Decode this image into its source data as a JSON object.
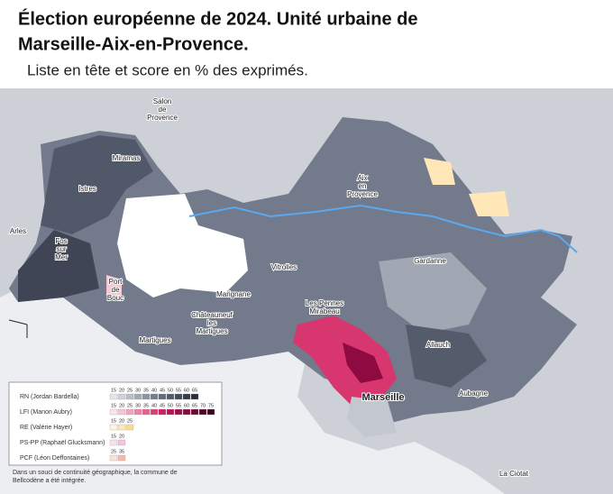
{
  "header": {
    "title_lines": [
      "Élection européenne de 2024.  Unité urbaine de",
      "Marseille-Aix-en-Provence."
    ],
    "subtitle": "Liste en tête et score en % des exprimés."
  },
  "places": [
    {
      "lines": [
        "Salon",
        "de",
        "Provence"
      ]
    },
    {
      "lines": [
        "Miramas"
      ]
    },
    {
      "lines": [
        "Istres"
      ]
    },
    {
      "lines": [
        "Arles"
      ]
    },
    {
      "lines": [
        "Fos",
        "sur",
        "Mer"
      ]
    },
    {
      "lines": [
        "Port",
        "de",
        "Bouc"
      ]
    },
    {
      "lines": [
        "Martigues"
      ]
    },
    {
      "lines": [
        "Châteauneuf",
        "les",
        "Martigues"
      ]
    },
    {
      "lines": [
        "Marignane"
      ]
    },
    {
      "lines": [
        "Vitrolles"
      ]
    },
    {
      "lines": [
        "Les Pennes",
        "Mirabeau"
      ]
    },
    {
      "lines": [
        "Aix",
        "en",
        "Provence"
      ]
    },
    {
      "lines": [
        "Gardanne"
      ]
    },
    {
      "lines": [
        "Allauch"
      ]
    },
    {
      "lines": [
        "Marseille"
      ]
    },
    {
      "lines": [
        "Aubagne"
      ]
    },
    {
      "lines": [
        "La Ciotat"
      ]
    }
  ],
  "legend": [
    {
      "name": "RN (Jordan Bardella)",
      "ticks": [
        15,
        20,
        25,
        30,
        35,
        40,
        45,
        50,
        55,
        60,
        65
      ],
      "colors": [
        "#e4e6ea",
        "#cfd2d9",
        "#b9bdc7",
        "#a3a8b4",
        "#8d93a1",
        "#787e8e",
        "#656b7c",
        "#545a6a",
        "#444a59",
        "#363b48",
        "#2a2e39"
      ]
    },
    {
      "name": "LFI (Manon Aubry)",
      "ticks": [
        15,
        20,
        25,
        30,
        35,
        40,
        45,
        50,
        55,
        60,
        65,
        70,
        75
      ],
      "colors": [
        "#fbe3ea",
        "#f7c6d4",
        "#f2a5bd",
        "#ec83a5",
        "#e6608d",
        "#df3d76",
        "#d21f63",
        "#bb1256",
        "#a10c4a",
        "#870a3f",
        "#6d0833",
        "#550627",
        "#3e041c"
      ]
    },
    {
      "name": "RE (Valérie Hayer)",
      "ticks": [
        15,
        20,
        25
      ],
      "colors": [
        "#fff4dc",
        "#ffe7b8",
        "#ffd98f"
      ]
    },
    {
      "name": "PS-PP (Raphaël Glucksmann)",
      "ticks": [
        15,
        20
      ],
      "colors": [
        "#fbe1f0",
        "#f5c2e0"
      ]
    },
    {
      "name": "PCF (Léon Deffontaines)",
      "ticks": [
        25,
        35
      ],
      "colors": [
        "#fde0d8",
        "#f9b9a8"
      ]
    }
  ],
  "note": [
    "Dans un souci de continuité géographique,  la commune de",
    "Bellcodène a été intégrée."
  ]
}
